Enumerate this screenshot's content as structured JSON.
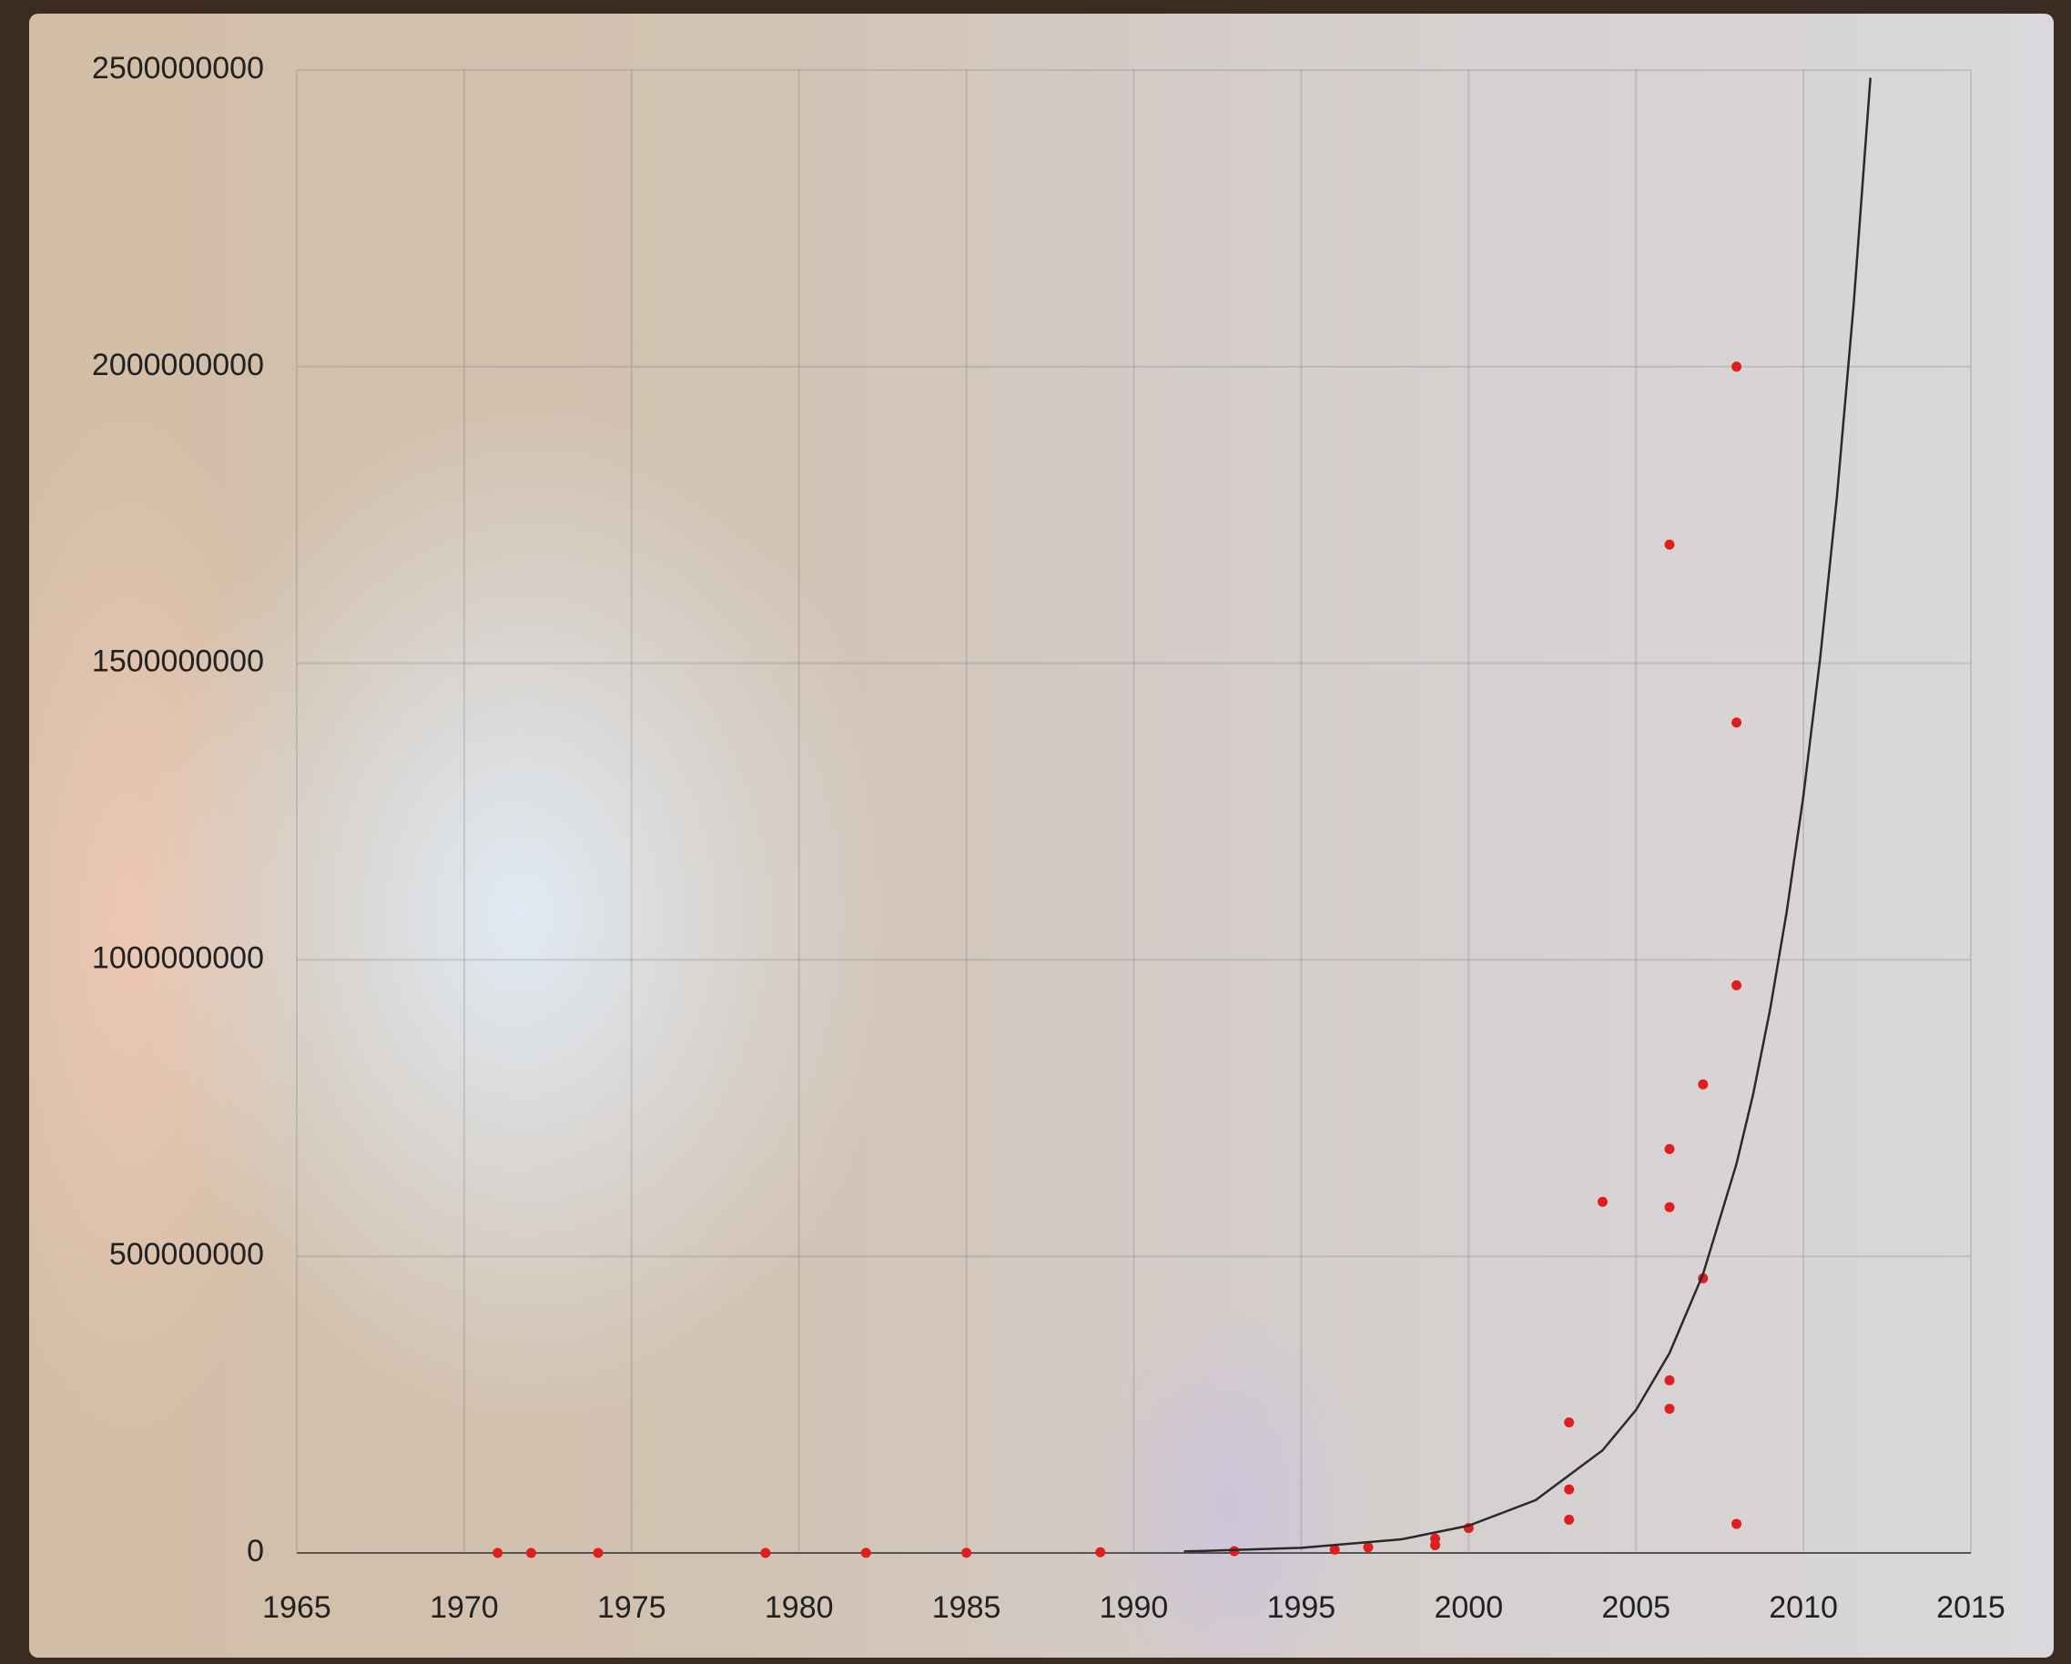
{
  "chart_data": {
    "type": "scatter",
    "xlim": [
      1965,
      2015
    ],
    "xticks": [
      1965,
      1970,
      1975,
      1980,
      1985,
      1990,
      1995,
      2000,
      2005,
      2010,
      2015
    ],
    "ylim": [
      0,
      2500000000
    ],
    "yticks": [
      0,
      500000000,
      1000000000,
      1500000000,
      2000000000,
      2500000000
    ],
    "grid": true,
    "series": [
      {
        "type": "scatter",
        "color": "#e01e1e",
        "x": [
          1971,
          1972,
          1974,
          1979,
          1982,
          1985,
          1989,
          1993,
          1996,
          1997,
          1999,
          1999,
          2000,
          2003,
          2003,
          2003,
          2004,
          2006,
          2006,
          2006,
          2006,
          2006,
          2007,
          2007,
          2008,
          2008,
          2008,
          2008
        ],
        "values": [
          2300,
          3500,
          6000,
          29000,
          134000,
          275000,
          1200000,
          3100000,
          5500000,
          9500000,
          24000000,
          13000000,
          42000000,
          107000000,
          56000000,
          220000000,
          592000000,
          1700000000,
          583000000,
          681000000,
          291000000,
          243000000,
          790000000,
          463000000,
          2000000000,
          1400000000,
          957000000,
          49000000
        ]
      },
      {
        "type": "line",
        "color": "#2a2a2a",
        "x": [
          1991.5,
          1992,
          1995,
          1998,
          2000,
          2002,
          2004,
          2005,
          2006,
          2007,
          2008,
          2008.5,
          2009,
          2009.5,
          2010,
          2010.5,
          2011,
          2011.5,
          2012
        ],
        "values": [
          2700000,
          3200000,
          8600000,
          23000000,
          46000000,
          89000000,
          173000000,
          241000000,
          337000000,
          470000000,
          656000000,
          774000000,
          915000000,
          1081000000,
          1277000000,
          1509000000,
          1781000000,
          2105000000,
          2487000000
        ]
      }
    ]
  }
}
